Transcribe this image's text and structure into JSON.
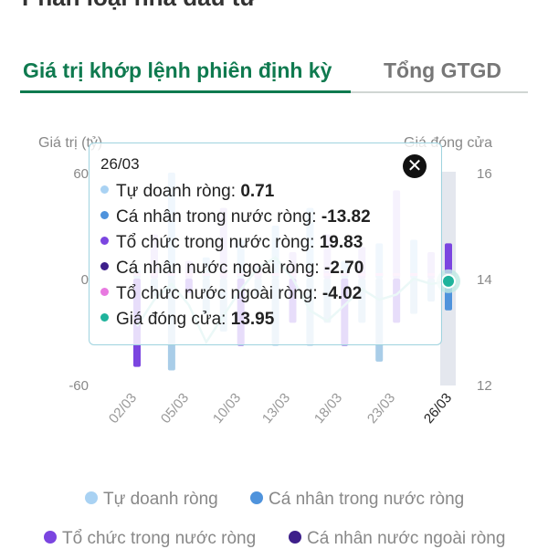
{
  "header": {
    "title_cut": "Phân loại nhà đầu tư"
  },
  "tabs": [
    {
      "label": "Giá trị khớp lệnh phiên định kỳ"
    },
    {
      "label": "Tổng GTGD"
    }
  ],
  "axis": {
    "left_title": "Giá trị (tỷ)",
    "right_title": "Giá đóng cửa",
    "left_ticks": [
      "60",
      "0",
      "-60"
    ],
    "right_ticks": [
      "16",
      "14",
      "12"
    ]
  },
  "tooltip": {
    "date": "26/03",
    "close_icon": "close-icon",
    "rows": [
      {
        "label": "Tự doanh ròng: ",
        "value": "0.71",
        "color": "#a9d2f3"
      },
      {
        "label": "Cá nhân trong nước ròng: ",
        "value": "-13.82",
        "color": "#4f93dc"
      },
      {
        "label": "Tổ chức trong nước ròng: ",
        "value": "19.83",
        "color": "#7b45e0"
      },
      {
        "label": "Cá nhân nước ngoài ròng: ",
        "value": "-2.70",
        "color": "#3d1f8a"
      },
      {
        "label": "Tổ chức nước ngoài ròng: ",
        "value": "-4.02",
        "color": "#e879e0"
      },
      {
        "label": "Giá đóng cửa: ",
        "value": "13.95",
        "color": "#1fb39c"
      }
    ]
  },
  "legend": [
    {
      "label": "Tự doanh ròng",
      "color": "#a9d2f3"
    },
    {
      "label": "Cá nhân trong nước ròng",
      "color": "#4f93dc"
    },
    {
      "label": "Tổ chức trong nước ròng",
      "color": "#7b45e0"
    },
    {
      "label": "Cá nhân nước ngoài ròng",
      "color": "#3d1f8a"
    }
  ],
  "chart_data": {
    "type": "bar",
    "x_tick_labels": [
      "02/03",
      "05/03",
      "10/03",
      "13/03",
      "18/03",
      "23/03",
      "26/03"
    ],
    "selected_category": "26/03",
    "ylim": [
      -60,
      60
    ],
    "y2lim": [
      12,
      16
    ],
    "grid": false,
    "legend_position": "bottom",
    "bars": [
      {
        "top": 5,
        "bottom": -50
      },
      {
        "top": 25,
        "bottom": -10
      },
      {
        "top": 60,
        "bottom": -52
      },
      {
        "top": 10,
        "bottom": -8
      },
      {
        "top": 12,
        "bottom": -20
      },
      {
        "top": 40,
        "bottom": -30
      },
      {
        "top": 22,
        "bottom": -38
      },
      {
        "top": 8,
        "bottom": -10
      },
      {
        "top": 30,
        "bottom": -38
      },
      {
        "top": 15,
        "bottom": -25
      },
      {
        "top": 40,
        "bottom": -38
      },
      {
        "top": 25,
        "bottom": -25
      },
      {
        "top": 10,
        "bottom": -38
      },
      {
        "top": 18,
        "bottom": -25
      },
      {
        "top": 20,
        "bottom": -47
      },
      {
        "top": 50,
        "bottom": -25
      },
      {
        "top": 22,
        "bottom": -20
      },
      {
        "top": 15,
        "bottom": -13
      },
      {
        "top": 20,
        "bottom": -18
      }
    ],
    "series": [
      {
        "name": "Giá đóng cửa",
        "values": [
          13.1,
          13.6,
          13.9,
          13.5,
          12.8,
          13.3,
          13.8,
          14.2,
          14.4,
          14.0,
          13.4,
          13.2,
          13.5,
          13.8,
          13.6,
          13.7,
          14.0,
          13.9,
          13.95
        ]
      }
    ],
    "selected_values": {
      "Tự doanh ròng": 0.71,
      "Cá nhân trong nước ròng": -13.82,
      "Tổ chức trong nước ròng": 19.83,
      "Cá nhân nước ngoài ròng": -2.7,
      "Tổ chức nước ngoài ròng": -4.02,
      "Giá đóng cửa": 13.95
    }
  }
}
